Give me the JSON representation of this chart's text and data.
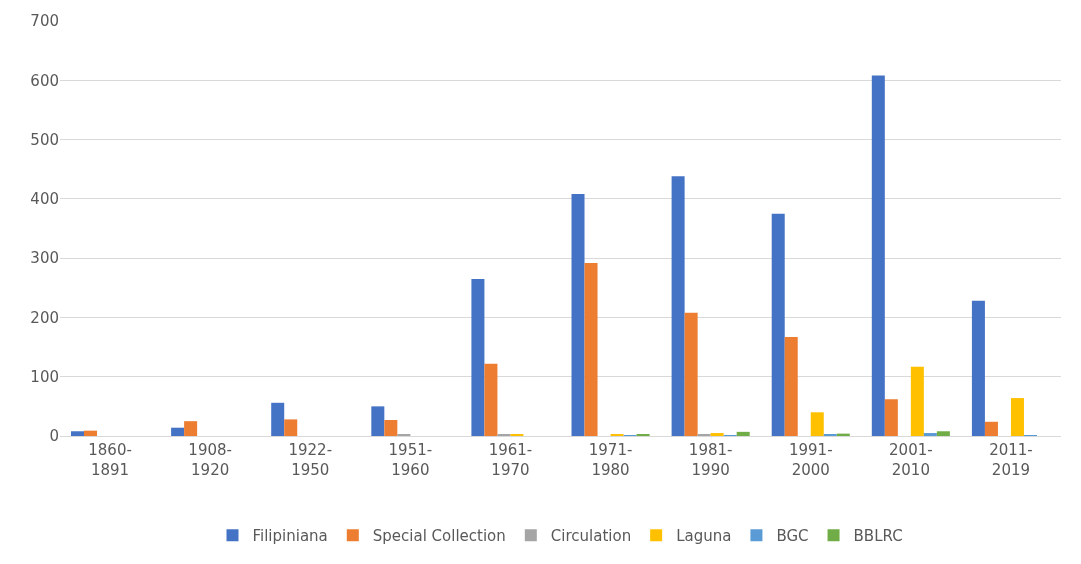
{
  "chart_data": {
    "type": "bar",
    "categories": [
      "1860-1891",
      "1908-1920",
      "1922-1950",
      "1951-1960",
      "1961-1970",
      "1971-1980",
      "1981-1990",
      "1991-2000",
      "2001-2010",
      "2011-2019"
    ],
    "series": [
      {
        "name": "Filipiniana",
        "color": "#4472c4",
        "values": [
          8,
          14,
          56,
          50,
          265,
          408,
          438,
          375,
          608,
          228
        ]
      },
      {
        "name": "Special Collection",
        "color": "#ed7d31",
        "values": [
          9,
          25,
          28,
          27,
          122,
          292,
          208,
          167,
          62,
          24
        ]
      },
      {
        "name": "Circulation",
        "color": "#a5a5a5",
        "values": [
          0,
          0,
          0,
          3,
          2,
          0,
          2,
          null,
          null,
          0
        ]
      },
      {
        "name": "Laguna",
        "color": "#ffc000",
        "values": [
          0,
          0,
          0,
          0,
          3,
          2,
          5,
          40,
          117,
          64
        ]
      },
      {
        "name": "BGC",
        "color": "#5b9bd5",
        "values": [
          0,
          0,
          0,
          0,
          0,
          1,
          1,
          3,
          5,
          1
        ]
      },
      {
        "name": "BBLRC",
        "color": "#70ad47",
        "values": [
          0,
          0,
          0,
          0,
          0,
          3,
          7,
          4,
          8,
          0
        ]
      }
    ],
    "ylim": [
      0,
      700
    ],
    "yticks": [
      0,
      100,
      200,
      300,
      400,
      500,
      600,
      700
    ],
    "grid": "y",
    "legend": "bottom"
  }
}
